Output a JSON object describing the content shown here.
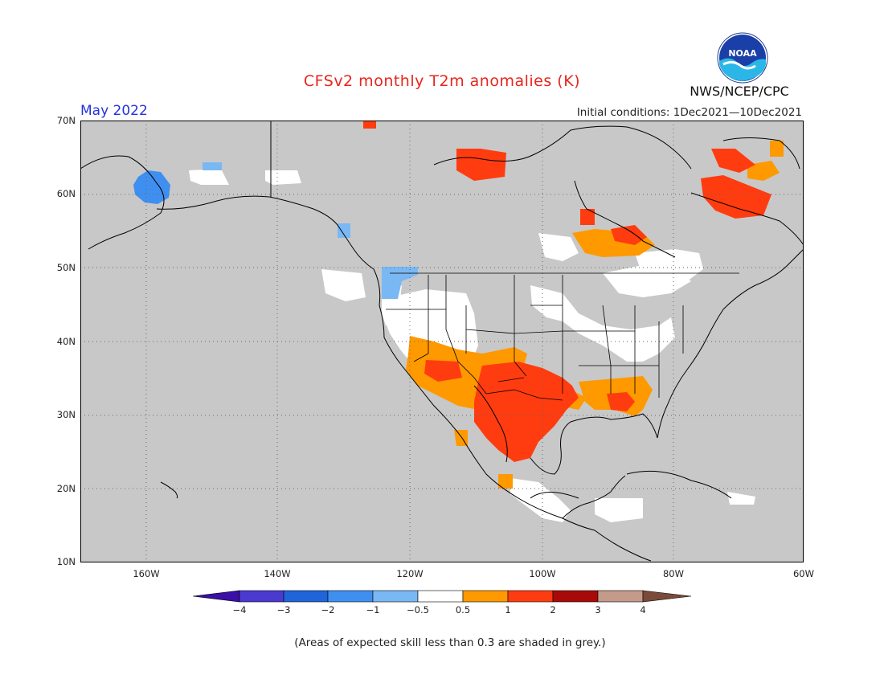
{
  "map": {
    "title": "CFSv2 monthly T2m anomalies (K)",
    "valid_month": "May 2022",
    "initial_conditions": "Initial conditions: 1Dec2021—10Dec2021",
    "agency": "NWS/NCEP/CPC",
    "logo_text": "NOAA",
    "footnote": "(Areas of expected skill less than 0.3 are shaded in grey.)",
    "lat_labels": [
      "70N",
      "60N",
      "50N",
      "40N",
      "30N",
      "20N",
      "10N"
    ],
    "lon_labels": [
      "160W",
      "140W",
      "120W",
      "100W",
      "80W",
      "60W"
    ],
    "colorbar": {
      "labels": [
        "−4",
        "−3",
        "−2",
        "−1",
        "−0.5",
        "0.5",
        "1",
        "2",
        "3",
        "4"
      ],
      "colors": [
        "#3a10a8",
        "#4a3ad0",
        "#1f64d8",
        "#3f8ff0",
        "#7ab8f4",
        "#ffffff",
        "#ff9900",
        "#ff3c0f",
        "#a80a0a",
        "#c49a8a",
        "#7a4a3a"
      ]
    },
    "colors": {
      "low_skill": "#c8c8c8",
      "title": "#e8251c",
      "month": "#2233dd"
    }
  }
}
